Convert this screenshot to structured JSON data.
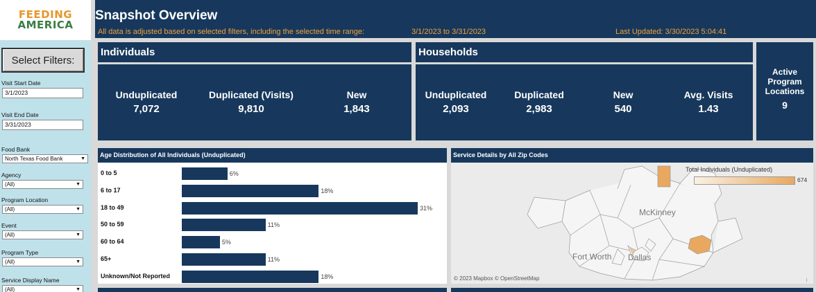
{
  "logo": {
    "line1": "FEEDING",
    "line2": "AMERICA"
  },
  "sidebar": {
    "select_filters": "Select Filters:",
    "visit_start_label": "Visit Start Date",
    "visit_start_value": "3/1/2023",
    "visit_end_label": "Visit End Date",
    "visit_end_value": "3/31/2023",
    "food_bank_label": "Food Bank",
    "food_bank_value": "North Texas Food Bank",
    "agency_label": "Agency",
    "agency_value": "(All)",
    "program_location_label": "Program Location",
    "program_location_value": "(All)",
    "event_label": "Event",
    "event_value": "(All)",
    "program_type_label": "Program Type",
    "program_type_value": "(All)",
    "service_display_label": "Service Display Name",
    "service_display_value": "(All)"
  },
  "header": {
    "title": "Snapshot Overview",
    "subtitle": "All data is adjusted based on selected filters, including the selected time range:",
    "range": "3/1/2023 to 3/31/2023",
    "updated": "Last Updated: 3/30/2023 5:04:41"
  },
  "individuals": {
    "title": "Individuals",
    "kpis": [
      {
        "label": "Unduplicated",
        "value": "7,072"
      },
      {
        "label": "Duplicated (Visits)",
        "value": "9,810"
      },
      {
        "label": "New",
        "value": "1,843"
      }
    ]
  },
  "households": {
    "title": "Households",
    "kpis": [
      {
        "label": "Unduplicated",
        "value": "2,093"
      },
      {
        "label": "Duplicated",
        "value": "2,983"
      },
      {
        "label": "New",
        "value": "540"
      },
      {
        "label": "Avg. Visits",
        "value": "1.43"
      }
    ]
  },
  "active_locations": {
    "line1": "Active",
    "line2": "Program",
    "line3": "Locations",
    "value": "9"
  },
  "chart_data": {
    "type": "bar",
    "title": "Age Distribution of All Individuals (Unduplicated)",
    "categories": [
      "0 to 5",
      "6 to 17",
      "18 to 49",
      "50 to 59",
      "60 to 64",
      "65+",
      "Unknown/Not Reported"
    ],
    "values": [
      6,
      18,
      31,
      11,
      5,
      11,
      18
    ],
    "labels": [
      "6%",
      "18%",
      "31%",
      "11%",
      "5%",
      "11%",
      "18%"
    ],
    "orientation": "horizontal",
    "bar_color": "#17385c"
  },
  "map": {
    "title": "Service Details by All Zip Codes",
    "legend_title": "Total Individuals (Unduplicated)",
    "legend_max": "674",
    "cities": [
      "McKinney",
      "Fort Worth",
      "Dallas"
    ],
    "credit": "© 2023 Mapbox  © OpenStreetMap",
    "info": "i",
    "highlight_color": "#e8a860"
  }
}
